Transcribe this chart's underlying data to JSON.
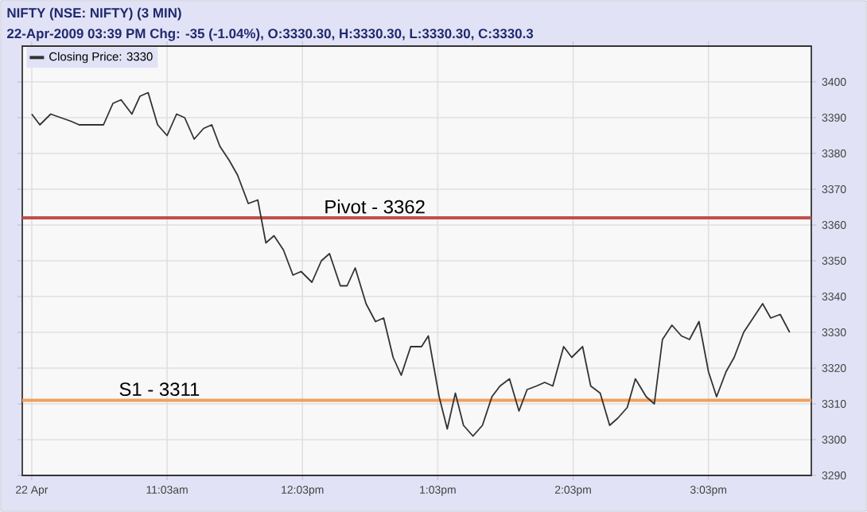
{
  "chart_data": {
    "type": "line",
    "title": "NIFTY (NSE: NIFTY) (3 MIN)",
    "subtitle": "22-Apr-2009 03:39 PM Chg: -35 (-1.04%), O:3330.30, H:3330.30, L:3330.30, C:3330.3",
    "x": [
      10.05,
      10.11,
      10.19,
      10.34,
      10.4,
      10.54,
      10.58,
      10.65,
      10.71,
      10.79,
      10.85,
      10.91,
      10.98,
      11.05,
      11.12,
      11.18,
      11.25,
      11.32,
      11.38,
      11.44,
      11.51,
      11.57,
      11.65,
      11.72,
      11.78,
      11.84,
      11.91,
      11.98,
      12.04,
      12.12,
      12.19,
      12.25,
      12.33,
      12.38,
      12.44,
      12.52,
      12.59,
      12.65,
      12.72,
      12.78,
      12.85,
      12.93,
      12.98,
      13.06,
      13.12,
      13.18,
      13.24,
      13.31,
      13.38,
      13.45,
      13.51,
      13.58,
      13.65,
      13.71,
      13.78,
      13.84,
      13.9,
      13.98,
      14.04,
      14.12,
      14.18,
      14.25,
      14.32,
      14.38,
      14.45,
      14.51,
      14.59,
      14.65,
      14.71,
      14.78,
      14.85,
      14.91,
      14.98,
      15.05,
      15.11,
      15.18,
      15.24,
      15.31,
      15.38,
      15.45,
      15.51,
      15.58,
      15.65
    ],
    "series": [
      {
        "name": "Closing Price: 3330",
        "color": "#333333",
        "values": [
          3391,
          3388,
          3391,
          3389,
          3388,
          3388,
          3388,
          3394,
          3395,
          3391,
          3396,
          3397,
          3388,
          3385,
          3391,
          3390,
          3384,
          3387,
          3388,
          3382,
          3378,
          3374,
          3366,
          3367,
          3355,
          3357,
          3353,
          3346,
          3347,
          3344,
          3350,
          3352,
          3343,
          3343,
          3348,
          3338,
          3333,
          3334,
          3323,
          3318,
          3326,
          3326,
          3329,
          3312,
          3303,
          3313,
          3304,
          3301,
          3304,
          3312,
          3315,
          3317,
          3308,
          3314,
          3315,
          3316,
          3315,
          3326,
          3323,
          3326,
          3315,
          3313,
          3304,
          3306,
          3309,
          3317,
          3312,
          3310,
          3328,
          3332,
          3329,
          3328,
          3333,
          3319,
          3312,
          3319,
          3323,
          3330,
          3334,
          3338,
          3334,
          3335,
          3330
        ]
      }
    ],
    "xlim": [
      9.98,
      15.81
    ],
    "xticks": [
      {
        "value": 10.05,
        "label": "22 Apr"
      },
      {
        "value": 11.05,
        "label": "11:03am"
      },
      {
        "value": 12.05,
        "label": "12:03pm"
      },
      {
        "value": 13.05,
        "label": "1:03pm"
      },
      {
        "value": 14.05,
        "label": "2:03pm"
      },
      {
        "value": 15.05,
        "label": "3:03pm"
      }
    ],
    "ylim": [
      3290,
      3410
    ],
    "yticks": [
      3290,
      3300,
      3310,
      3320,
      3330,
      3340,
      3350,
      3360,
      3370,
      3380,
      3390,
      3400
    ],
    "ref_lines": [
      {
        "axis": "y",
        "value": 3362,
        "label": "Pivot - 3362",
        "color": "#c0504d"
      },
      {
        "axis": "y",
        "value": 3311,
        "label": "S1 - 3311",
        "color": "#f0a060"
      }
    ],
    "grid": true,
    "legend": "top left",
    "marker": "none",
    "line_style": "solid"
  }
}
